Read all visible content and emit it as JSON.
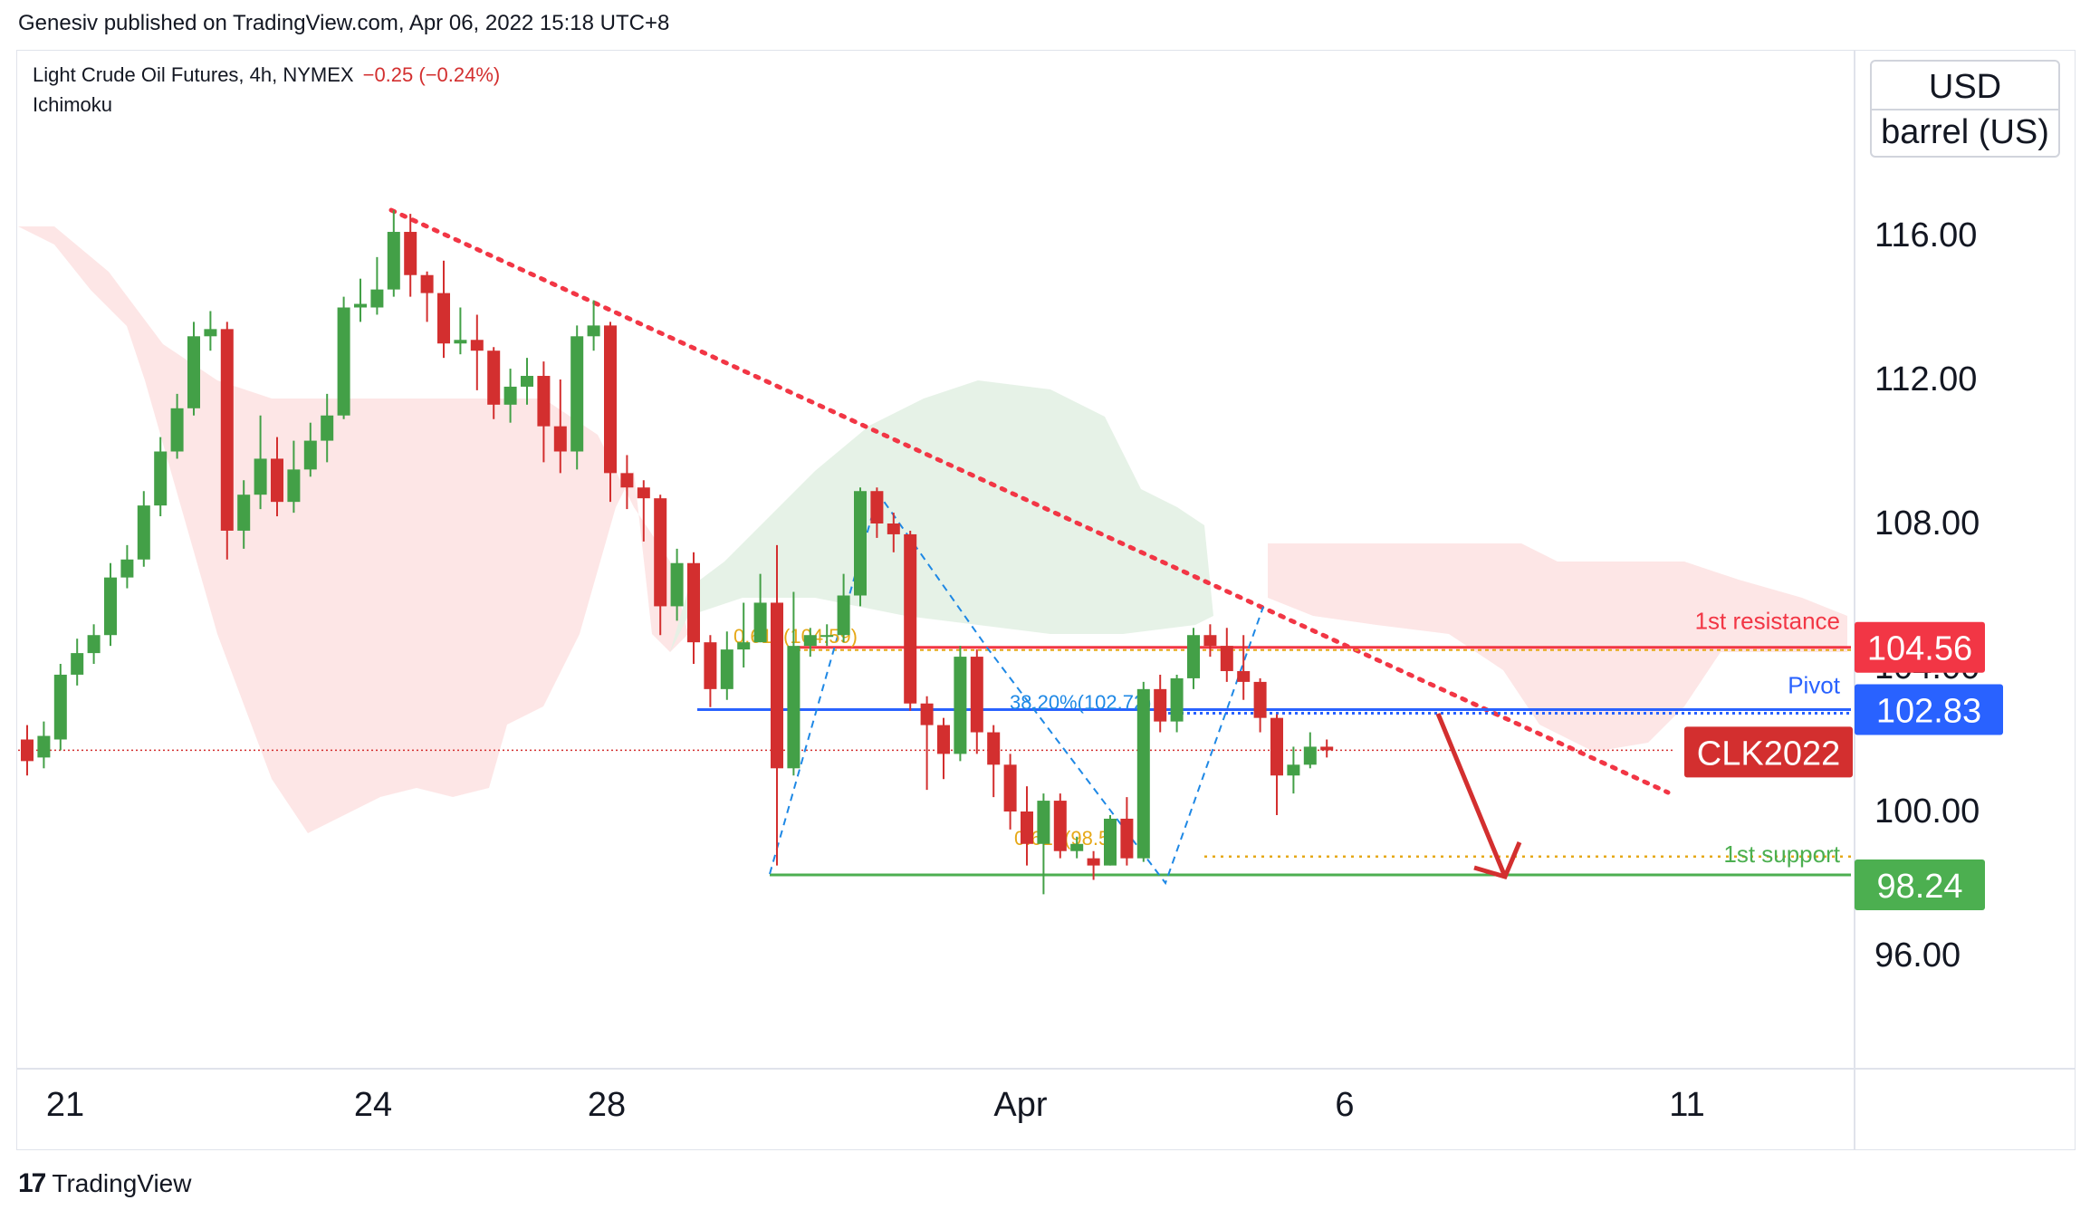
{
  "header": {
    "text": "Genesiv published on TradingView.com, Apr 06, 2022 15:18 UTC+8"
  },
  "legend": {
    "symbol": "Light Crude Oil Futures, 4h, NYMEX",
    "change": "−0.25 (−0.24%)",
    "indicator": "Ichimoku"
  },
  "units": {
    "currency": "USD",
    "unit": "barrel (US)"
  },
  "footer": {
    "brand": "TradingView",
    "logo": "tradingview-logo-icon"
  },
  "colors": {
    "up": "#43a047",
    "down": "#d32f2f",
    "resistance": "#f23645",
    "pivot": "#2962ff",
    "support": "#4caf50",
    "trendline": "#f23645",
    "fib": "#e6a817",
    "cloud_bear": "#fde2e2",
    "cloud_bull": "#e3f1e4"
  },
  "chart_data": {
    "type": "candlestick",
    "symbol_label": "CLK2022",
    "y_ticks": [
      "116.00",
      "112.00",
      "108.00",
      "104.00",
      "100.00",
      "96.00"
    ],
    "y_tick_values": [
      116,
      112,
      108,
      104,
      100,
      96
    ],
    "x_ticks": [
      "21",
      "24",
      "28",
      "Apr",
      "6",
      "11"
    ],
    "levels": [
      {
        "name": "1st resistance",
        "value": 104.56,
        "label": "104.56",
        "color": "#f23645"
      },
      {
        "name": "Pivot",
        "value": 102.83,
        "label": "102.83",
        "color": "#2962ff"
      },
      {
        "name": "1st support",
        "value": 98.24,
        "label": "98.24",
        "color": "#4caf50"
      }
    ],
    "current_price": 101.7,
    "fib_labels": [
      "0.618(104.59)",
      "38.20%(102.72)",
      "0.618(98.5)"
    ],
    "candles": [
      [
        102.0,
        101.4,
        102.4,
        101.0
      ],
      [
        101.5,
        102.1,
        102.5,
        101.2
      ],
      [
        102.0,
        103.8,
        104.1,
        101.7
      ],
      [
        103.8,
        104.4,
        104.8,
        103.5
      ],
      [
        104.4,
        104.9,
        105.2,
        104.1
      ],
      [
        104.9,
        106.5,
        106.9,
        104.6
      ],
      [
        106.5,
        107.0,
        107.4,
        106.2
      ],
      [
        107.0,
        108.5,
        108.9,
        106.8
      ],
      [
        108.5,
        110.0,
        110.4,
        108.2
      ],
      [
        110.0,
        111.2,
        111.6,
        109.8
      ],
      [
        111.2,
        113.2,
        113.6,
        111.0
      ],
      [
        113.2,
        113.4,
        113.9,
        112.8
      ],
      [
        113.4,
        107.8,
        113.6,
        107.0
      ],
      [
        107.8,
        108.8,
        109.2,
        107.3
      ],
      [
        108.8,
        109.8,
        111.0,
        108.4
      ],
      [
        109.8,
        108.6,
        110.4,
        108.2
      ],
      [
        108.6,
        109.5,
        110.3,
        108.3
      ],
      [
        109.5,
        110.3,
        110.8,
        109.3
      ],
      [
        110.3,
        111.0,
        111.6,
        109.7
      ],
      [
        111.0,
        114.0,
        114.3,
        110.9
      ],
      [
        114.0,
        114.1,
        114.8,
        113.6
      ],
      [
        114.0,
        114.5,
        115.4,
        113.8
      ],
      [
        114.5,
        116.1,
        116.7,
        114.3
      ],
      [
        116.1,
        114.9,
        116.6,
        114.3
      ],
      [
        114.9,
        114.4,
        115.0,
        113.6
      ],
      [
        114.4,
        113.0,
        115.3,
        112.6
      ],
      [
        113.0,
        113.1,
        114.0,
        112.7
      ],
      [
        113.1,
        112.8,
        113.8,
        111.7
      ],
      [
        112.8,
        111.3,
        112.9,
        110.9
      ],
      [
        111.3,
        111.8,
        112.3,
        110.8
      ],
      [
        111.8,
        112.1,
        112.6,
        111.3
      ],
      [
        112.1,
        110.7,
        112.5,
        109.7
      ],
      [
        110.7,
        110.0,
        112.0,
        109.4
      ],
      [
        110.0,
        113.2,
        113.5,
        109.5
      ],
      [
        113.2,
        113.5,
        114.2,
        112.8
      ],
      [
        113.5,
        109.4,
        113.6,
        108.6
      ],
      [
        109.4,
        109.0,
        109.9,
        108.4
      ],
      [
        109.0,
        108.7,
        109.2,
        107.5
      ],
      [
        108.7,
        105.7,
        108.8,
        104.9
      ],
      [
        105.7,
        106.9,
        107.3,
        105.3
      ],
      [
        106.9,
        104.7,
        107.2,
        104.1
      ],
      [
        104.7,
        103.4,
        104.9,
        102.9
      ],
      [
        103.4,
        104.5,
        105.0,
        103.1
      ],
      [
        104.5,
        104.7,
        105.8,
        104.0
      ],
      [
        104.7,
        105.8,
        106.6,
        104.7
      ],
      [
        105.8,
        101.2,
        107.4,
        98.5
      ],
      [
        101.2,
        104.6,
        106.1,
        101.0
      ],
      [
        104.6,
        104.9,
        105.1,
        104.3
      ],
      [
        104.9,
        104.9,
        105.2,
        104.6
      ],
      [
        104.9,
        106.0,
        106.6,
        104.7
      ],
      [
        106.0,
        108.9,
        109.0,
        105.7
      ],
      [
        108.9,
        108.0,
        109.0,
        107.6
      ],
      [
        108.0,
        107.7,
        108.3,
        107.2
      ],
      [
        107.7,
        103.0,
        107.8,
        102.8
      ],
      [
        103.0,
        102.4,
        103.2,
        100.6
      ],
      [
        102.4,
        101.6,
        102.6,
        100.9
      ],
      [
        101.6,
        104.3,
        104.6,
        101.4
      ],
      [
        104.3,
        102.2,
        104.5,
        101.6
      ],
      [
        102.2,
        101.3,
        102.4,
        100.4
      ],
      [
        101.3,
        100.0,
        101.6,
        99.5
      ],
      [
        100.0,
        99.1,
        100.7,
        98.5
      ],
      [
        99.1,
        100.3,
        100.5,
        97.7
      ],
      [
        100.3,
        98.9,
        100.5,
        98.7
      ],
      [
        98.9,
        99.1,
        99.3,
        98.7
      ],
      [
        98.7,
        98.5,
        98.9,
        98.1
      ],
      [
        98.5,
        99.8,
        99.9,
        98.5
      ],
      [
        99.8,
        98.7,
        100.4,
        98.5
      ],
      [
        98.7,
        103.4,
        103.6,
        98.6
      ],
      [
        103.4,
        102.5,
        103.8,
        102.2
      ],
      [
        102.5,
        103.7,
        103.8,
        102.2
      ],
      [
        103.7,
        104.9,
        105.1,
        103.4
      ],
      [
        104.9,
        104.6,
        105.2,
        104.3
      ],
      [
        104.6,
        103.9,
        105.1,
        103.6
      ],
      [
        103.9,
        103.6,
        104.9,
        103.1
      ],
      [
        103.6,
        102.6,
        103.7,
        102.2
      ],
      [
        102.6,
        101.0,
        102.7,
        99.9
      ],
      [
        101.0,
        101.3,
        101.8,
        100.5
      ],
      [
        101.3,
        101.8,
        102.2,
        101.2
      ],
      [
        101.8,
        101.7,
        102.0,
        101.5
      ]
    ],
    "annotations": [
      "1st resistance",
      "Pivot",
      "1st support"
    ]
  }
}
